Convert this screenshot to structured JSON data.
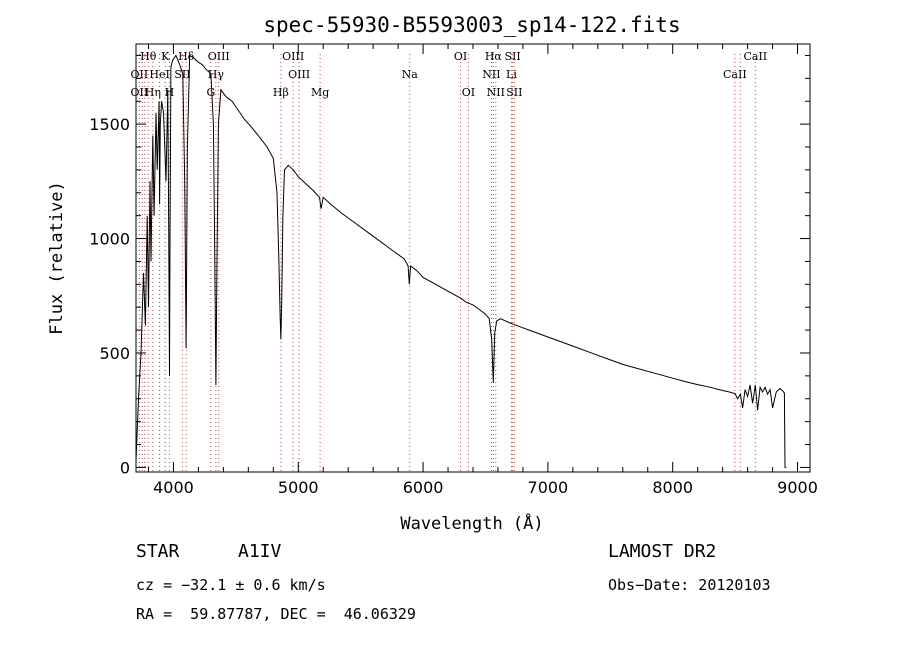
{
  "chart_data": {
    "type": "line",
    "title": "spec-55930-B5593003_sp14-122.fits",
    "xlabel": "Wavelength (Å)",
    "ylabel": "Flux (relative)",
    "xlim": [
      3700,
      9100
    ],
    "ylim": [
      -20,
      1850
    ],
    "xticks": [
      4000,
      5000,
      6000,
      7000,
      8000,
      9000
    ],
    "yticks": [
      0,
      500,
      1000,
      1500
    ],
    "grid": false,
    "series": [
      {
        "x": [
          3700,
          3720,
          3740,
          3760,
          3775,
          3790,
          3800,
          3812,
          3820,
          3835,
          3845,
          3860,
          3870,
          3885,
          3889,
          3895,
          3905,
          3920,
          3940,
          3955,
          3962,
          3968,
          3972,
          3980,
          3995,
          4020,
          4050,
          4075,
          4090,
          4101,
          4112,
          4130,
          4160,
          4200,
          4230,
          4260,
          4300,
          4320,
          4330,
          4340,
          4350,
          4360,
          4380,
          4420,
          4470,
          4520,
          4570,
          4620,
          4680,
          4750,
          4800,
          4830,
          4845,
          4855,
          4861,
          4867,
          4877,
          4890,
          4920,
          4960,
          5000,
          5060,
          5120,
          5170,
          5183,
          5200,
          5260,
          5350,
          5450,
          5550,
          5650,
          5750,
          5850,
          5880,
          5890,
          5900,
          5950,
          6000,
          6100,
          6200,
          6300,
          6350,
          6400,
          6450,
          6500,
          6530,
          6550,
          6563,
          6575,
          6590,
          6620,
          6700,
          6800,
          6900,
          7000,
          7100,
          7200,
          7300,
          7400,
          7500,
          7600,
          7700,
          7800,
          7900,
          8000,
          8100,
          8200,
          8300,
          8400,
          8450,
          8500,
          8520,
          8542,
          8560,
          8580,
          8600,
          8620,
          8640,
          8662,
          8680,
          8700,
          8720,
          8740,
          8760,
          8780,
          8800,
          8830,
          8860,
          8880,
          8895,
          8900,
          8910
        ],
        "y": [
          30,
          300,
          500,
          850,
          620,
          1100,
          700,
          1250,
          900,
          1450,
          1100,
          1550,
          1300,
          1600,
          1150,
          1500,
          1600,
          1550,
          1250,
          1650,
          1050,
          400,
          900,
          1750,
          1780,
          1800,
          1760,
          1720,
          1250,
          520,
          1400,
          1800,
          1790,
          1770,
          1760,
          1740,
          1720,
          1500,
          1000,
          360,
          950,
          1500,
          1650,
          1620,
          1600,
          1560,
          1520,
          1490,
          1450,
          1400,
          1350,
          1200,
          900,
          650,
          560,
          720,
          1100,
          1300,
          1320,
          1300,
          1270,
          1240,
          1210,
          1180,
          1130,
          1180,
          1150,
          1110,
          1070,
          1030,
          990,
          950,
          910,
          880,
          800,
          880,
          860,
          830,
          800,
          770,
          740,
          720,
          710,
          690,
          670,
          650,
          560,
          370,
          590,
          640,
          650,
          630,
          610,
          590,
          570,
          550,
          530,
          510,
          490,
          470,
          450,
          435,
          420,
          405,
          390,
          375,
          362,
          350,
          336,
          330,
          322,
          300,
          320,
          260,
          340,
          310,
          360,
          280,
          360,
          250,
          350,
          330,
          350,
          320,
          340,
          260,
          330,
          345,
          335,
          325,
          0,
          0
        ]
      }
    ],
    "lines": [
      {
        "label": "Hθ",
        "x": 3798,
        "row": 1
      },
      {
        "label": "K",
        "x": 3934,
        "row": 1
      },
      {
        "label": "Hδ",
        "x": 4102,
        "row": 1
      },
      {
        "label": "OIII",
        "x": 4363,
        "row": 1
      },
      {
        "label": "OIII",
        "x": 4959,
        "row": 1
      },
      {
        "label": "OI",
        "x": 6300,
        "row": 1
      },
      {
        "label": "Hα",
        "x": 6563,
        "row": 1
      },
      {
        "label": "SII",
        "x": 6717,
        "row": 1
      },
      {
        "label": "CaII",
        "x": 8662,
        "row": 1
      },
      {
        "label": "OII",
        "x": 3727,
        "row": 2
      },
      {
        "label": "HeI",
        "x": 3889,
        "row": 2
      },
      {
        "label": "SII",
        "x": 4072,
        "row": 2
      },
      {
        "label": "Hγ",
        "x": 4340,
        "row": 2
      },
      {
        "label": "OIII",
        "x": 5007,
        "row": 2
      },
      {
        "label": "Na",
        "x": 5893,
        "row": 2
      },
      {
        "label": "NII",
        "x": 6548,
        "row": 2
      },
      {
        "label": "Li",
        "x": 6708,
        "row": 2
      },
      {
        "label": "CaII",
        "x": 8498,
        "row": 2
      },
      {
        "label": "OII",
        "x": 3727,
        "row": 3
      },
      {
        "label": "Hη",
        "x": 3835,
        "row": 3
      },
      {
        "label": "H",
        "x": 3968,
        "row": 3
      },
      {
        "label": "G",
        "x": 4300,
        "row": 3
      },
      {
        "label": "Hβ",
        "x": 4861,
        "row": 3
      },
      {
        "label": "Mg",
        "x": 5175,
        "row": 3
      },
      {
        "label": "OI",
        "x": 6363,
        "row": 3
      },
      {
        "label": "NII",
        "x": 6583,
        "row": 3
      },
      {
        "label": "SII",
        "x": 6731,
        "row": 3
      }
    ],
    "line_markers_x": [
      3727,
      3750,
      3771,
      3798,
      3835,
      3889,
      3934,
      3968,
      4072,
      4102,
      4300,
      4340,
      4363,
      4861,
      4959,
      5007,
      5175,
      5893,
      6300,
      6363,
      6548,
      6563,
      6583,
      6708,
      6717,
      6731,
      8498,
      8542,
      8662
    ]
  },
  "info": {
    "object_type": "STAR",
    "subclass": "A1IV",
    "survey": "LAMOST DR2",
    "cz": "cz = −32.1 ± 0.6 km/s",
    "obs_date": "Obs−Date: 20120103",
    "coords": "RA =  59.87787, DEC =  46.06329"
  }
}
